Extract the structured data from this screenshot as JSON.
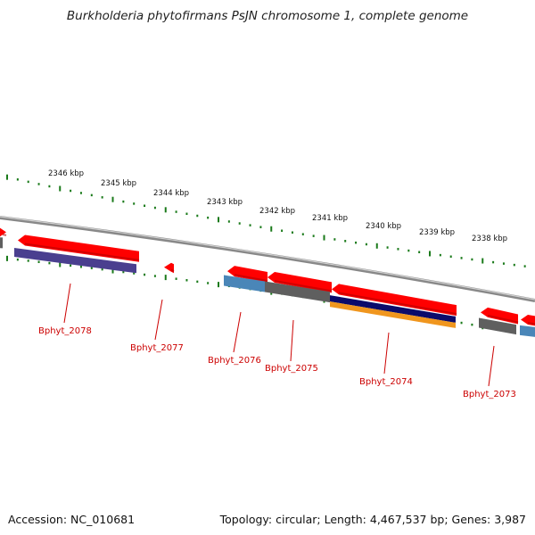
{
  "title": "Burkholderia phytofirmans PsJN chromosome 1, complete genome",
  "footer": {
    "accession": "Accession: NC_010681",
    "summary": "Topology: circular; Length: 4,467,537 bp; Genes: 3,987"
  },
  "colors": {
    "gene": "#ff0000",
    "backbone": "#888888",
    "tick": "#1a7a1a",
    "label": "#cc0000",
    "feature_purple": "#4a3f8f",
    "feature_blue": "#4a86b8",
    "feature_gray": "#5f5f5f",
    "feature_navy": "#0b0b6b",
    "feature_orange": "#f0961e"
  },
  "kbp_labels": [
    "2346 kbp",
    "2345 kbp",
    "2344 kbp",
    "2343 kbp",
    "2342 kbp",
    "2341 kbp",
    "2340 kbp",
    "2339 kbp",
    "2338 kbp"
  ],
  "genes": [
    {
      "name": "Bphyt_2078"
    },
    {
      "name": "Bphyt_2077"
    },
    {
      "name": "Bphyt_2076"
    },
    {
      "name": "Bphyt_2075"
    },
    {
      "name": "Bphyt_2074"
    },
    {
      "name": "Bphyt_2073"
    }
  ]
}
